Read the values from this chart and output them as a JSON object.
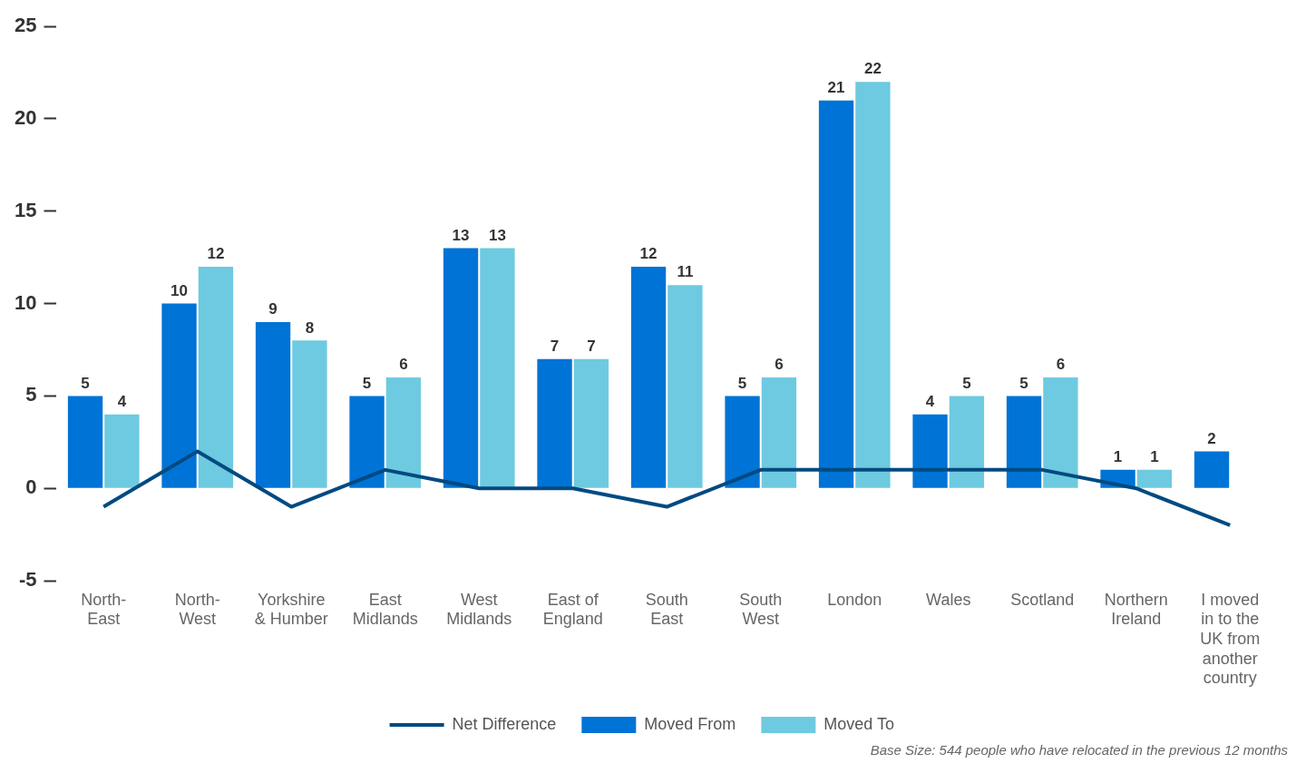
{
  "chart_data": {
    "type": "bar",
    "categories": [
      "North-East",
      "North-West",
      "Yorkshire & Humber",
      "East Midlands",
      "West Midlands",
      "East of England",
      "South East",
      "South West",
      "London",
      "Wales",
      "Scotland",
      "Northern Ireland",
      "I moved in to the UK from another country"
    ],
    "series": [
      {
        "name": "Moved From",
        "color": "#0073d6",
        "values": [
          5,
          10,
          9,
          5,
          13,
          7,
          12,
          5,
          21,
          4,
          5,
          1,
          2
        ],
        "value_labels": [
          "5",
          "10",
          "9",
          "5",
          "13",
          "7",
          "12",
          "5",
          "21",
          "4",
          "5",
          "1",
          "2"
        ]
      },
      {
        "name": "Moved To",
        "color": "#6ecae0",
        "values": [
          4,
          12,
          8,
          6,
          13,
          7,
          11,
          6,
          22,
          5,
          6,
          1,
          null
        ],
        "value_labels": [
          "4",
          "12",
          "8",
          "6",
          "13",
          "7",
          "11",
          "6",
          "22",
          "5",
          "6",
          "1",
          null
        ]
      },
      {
        "name": "Net Difference",
        "type": "line",
        "color": "#004a80",
        "values": [
          -1,
          2,
          -1,
          1,
          0,
          0,
          -1,
          1,
          1,
          1,
          1,
          0,
          -2
        ]
      }
    ],
    "ylim": [
      -5,
      25
    ],
    "yticks": [
      -5,
      0,
      5,
      10,
      15,
      20,
      25
    ],
    "grid": false,
    "legend": "bottom",
    "marker": "none",
    "line_style": "solid",
    "annotations": [
      "Base Size: 544 people who have relocated in the previous 12 months"
    ]
  }
}
